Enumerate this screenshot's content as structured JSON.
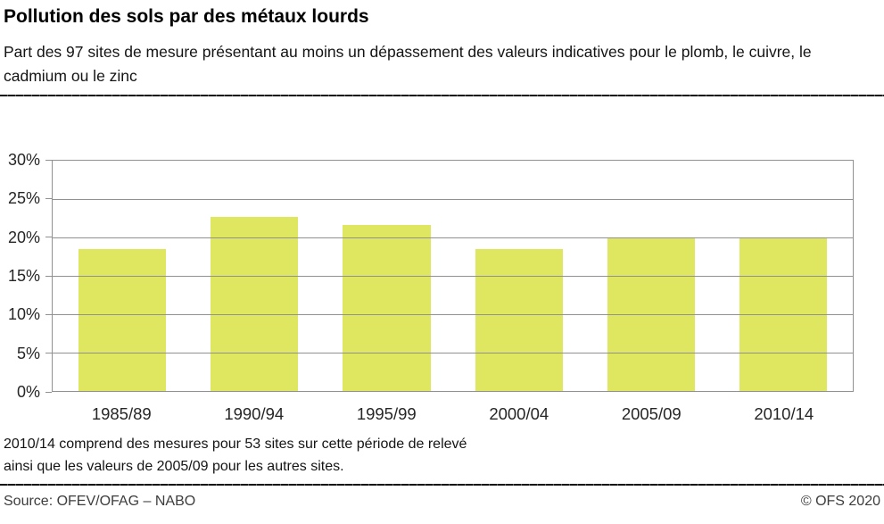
{
  "header": {
    "title": "Pollution des sols par des métaux lourds",
    "subtitle": "Part des 97 sites de mesure présentant au moins un dépassement des valeurs indicatives pour le plomb, le cuivre, le cadmium ou le zinc"
  },
  "chart_data": {
    "type": "bar",
    "categories": [
      "1985/89",
      "1990/94",
      "1995/99",
      "2000/04",
      "2005/09",
      "2010/14"
    ],
    "values": [
      18.5,
      22.7,
      21.6,
      18.5,
      20,
      20
    ],
    "unit": "%",
    "title": "Pollution des sols par des métaux lourds",
    "xlabel": "",
    "ylabel": "",
    "ylim": [
      0,
      30
    ],
    "ytick_step": 5,
    "ytick_labels": [
      "0%",
      "5%",
      "10%",
      "15%",
      "20%",
      "25%",
      "30%"
    ],
    "grid": true,
    "legend": "none",
    "bar_color": "#dee75f",
    "grid_color": "#919191"
  },
  "footnote": {
    "line1": "2010/14 comprend des mesures pour 53 sites sur cette période de relevé",
    "line2": "ainsi que les valeurs de 2005/09 pour les autres sites."
  },
  "footer": {
    "source": "Source: OFEV/OFAG – NABO",
    "copyright": "© OFS 2020"
  }
}
